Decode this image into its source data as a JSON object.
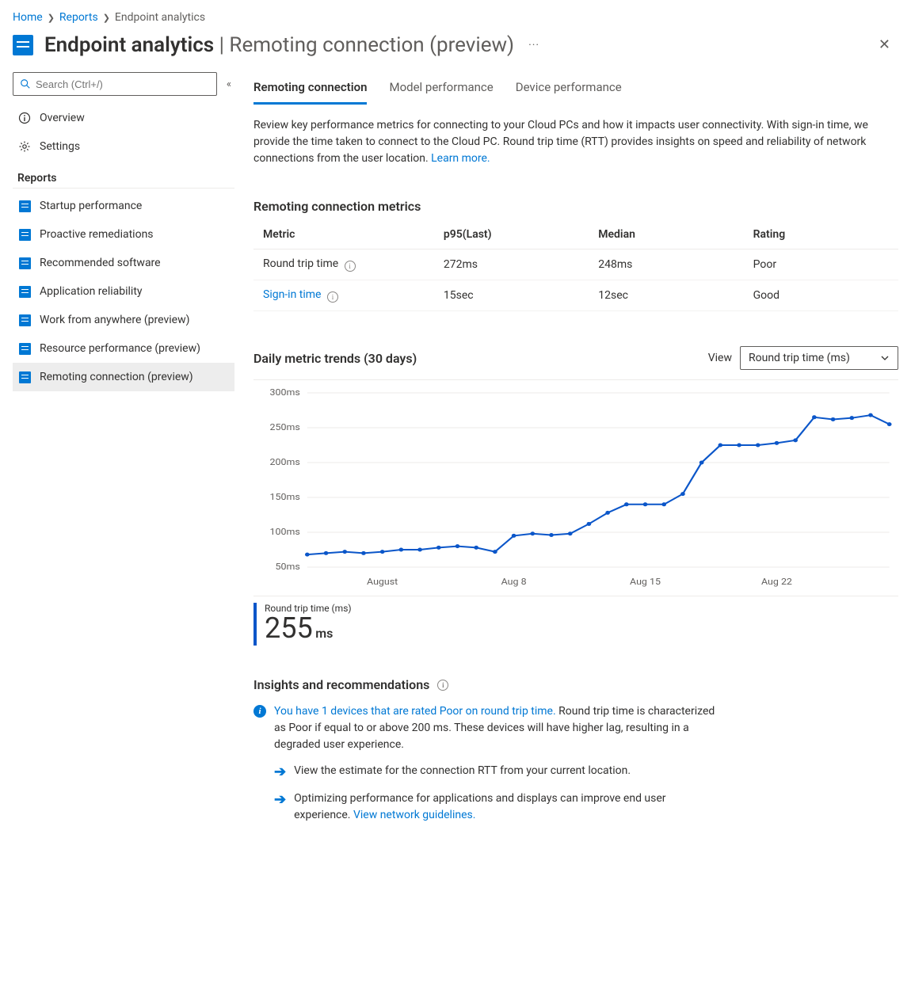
{
  "breadcrumb": {
    "home": "Home",
    "reports": "Reports",
    "current": "Endpoint analytics"
  },
  "title": {
    "main": "Endpoint analytics",
    "sub": "Remoting connection (preview)",
    "more": "···"
  },
  "sidebar": {
    "search_placeholder": "Search (Ctrl+/)",
    "overview": "Overview",
    "settings": "Settings",
    "group_reports": "Reports",
    "reports": [
      {
        "label": "Startup performance"
      },
      {
        "label": "Proactive remediations"
      },
      {
        "label": "Recommended software"
      },
      {
        "label": "Application reliability"
      },
      {
        "label": "Work from anywhere (preview)"
      },
      {
        "label": "Resource performance (preview)"
      },
      {
        "label": "Remoting connection (preview)"
      }
    ]
  },
  "tabs": {
    "t0": "Remoting connection",
    "t1": "Model performance",
    "t2": "Device performance"
  },
  "desc": {
    "text": "Review key performance metrics for connecting to your Cloud PCs and how it impacts user connectivity. With sign-in time, we provide the time taken to connect to the Cloud PC. Round trip time (RTT) provides insights on speed and reliability of network connections from the user location. ",
    "link": "Learn more."
  },
  "metrics": {
    "heading": "Remoting connection metrics",
    "cols": {
      "c0": "Metric",
      "c1": "p95(Last)",
      "c2": "Median",
      "c3": "Rating"
    },
    "rows": [
      {
        "metric": "Round trip time",
        "p95": "272ms",
        "median": "248ms",
        "rating": "Poor",
        "link": false
      },
      {
        "metric": "Sign-in time",
        "p95": "15sec",
        "median": "12sec",
        "rating": "Good",
        "link": true
      }
    ]
  },
  "trends": {
    "heading": "Daily metric trends (30 days)",
    "view_label": "View",
    "dropdown": "Round trip time (ms)",
    "chart": {
      "type": "line",
      "y_ticks": [
        50,
        100,
        150,
        200,
        250,
        300
      ],
      "y_suffix": "ms",
      "ylim": [
        50,
        300
      ],
      "x_ticks": [
        {
          "pos": 4,
          "label": "August"
        },
        {
          "pos": 11,
          "label": "Aug 8"
        },
        {
          "pos": 18,
          "label": "Aug 15"
        },
        {
          "pos": 25,
          "label": "Aug 22"
        }
      ],
      "data": [
        68,
        70,
        72,
        70,
        72,
        75,
        75,
        78,
        80,
        78,
        72,
        95,
        98,
        96,
        98,
        112,
        128,
        140,
        140,
        140,
        155,
        200,
        225,
        225,
        225,
        228,
        232,
        265,
        262,
        264,
        268,
        255
      ],
      "line_color": "#0b56c9",
      "grid_color": "#edebe9",
      "background": "#ffffff"
    },
    "value": {
      "label": "Round trip time (ms)",
      "number": "255",
      "unit": "ms"
    }
  },
  "insights": {
    "heading": "Insights and recommendations",
    "item": {
      "link": "You have 1 devices that are rated Poor on round trip time.",
      "text": " Round trip time is characterized as Poor if equal to or above 200 ms. These devices will have higher lag, resulting in a degraded user experience."
    },
    "actions": [
      {
        "text": "View the estimate for the connection RTT from your current location."
      },
      {
        "text": "Optimizing performance for applications and displays can improve end user experience. ",
        "link": "View network guidelines."
      }
    ]
  }
}
